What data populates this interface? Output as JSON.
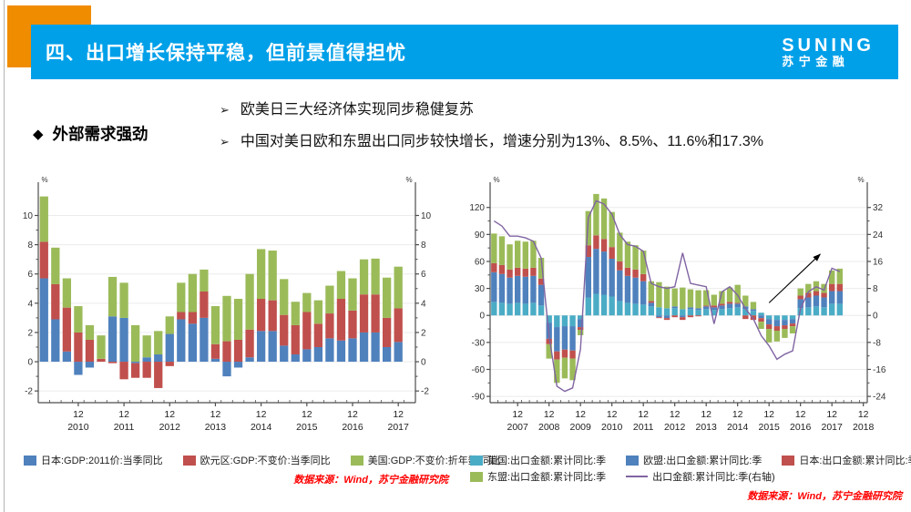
{
  "header": {
    "title": "四、出口增长保持平稳，但前景值得担忧",
    "logo_line1": "SUNING",
    "logo_line2": "苏宁金融"
  },
  "bullets": {
    "diamond_icon": "◆",
    "arrow_icon": "➢",
    "heading": "外部需求强劲",
    "items": [
      "欧美日三大经济体实现同步稳健复苏",
      "中国对美日欧和东盟出口同步较快增长，增速分别为13%、8.5%、11.6%和17.3%"
    ]
  },
  "colors": {
    "header_bg": "#00A0E9",
    "accent_orange": "#F08C00",
    "source_red": "#FF0000",
    "axis": "#4d4d4d",
    "grid": "#ebebeb"
  },
  "sources": {
    "left": "数据来源：Wind，苏宁金融研究院",
    "right": "数据来源：Wind，苏宁金融研究院"
  },
  "chart_data": [
    {
      "name": "gdp-growth-quarterly",
      "type": "bar",
      "stacked": true,
      "unit": "%",
      "x_tick_label": "12",
      "years": [
        "2010",
        "2011",
        "2012",
        "2013",
        "2014",
        "2015",
        "2016",
        "2017"
      ],
      "ylim": [
        -2.8,
        11.9
      ],
      "yticks": [
        -2,
        0,
        2,
        4,
        6,
        8,
        10
      ],
      "right_axis": "mirror",
      "x_slots": 33,
      "grid": true,
      "legend_position": "bottom",
      "series": [
        {
          "name": "日本:GDP:2011价:当季同比",
          "color": "#4F81BD",
          "values": [
            5.7,
            2.9,
            0.7,
            -0.9,
            -0.4,
            0.0,
            3.1,
            3.0,
            -0.1,
            0.3,
            0.5,
            1.9,
            2.9,
            2.6,
            3.0,
            0.2,
            -1.0,
            -0.4,
            0.3,
            2.1,
            2.1,
            1.1,
            0.5,
            0.85,
            1.0,
            1.6,
            1.45,
            1.6,
            2.0,
            2.0,
            1.0,
            1.35
          ]
        },
        {
          "name": "欧元区:GDP:不变价:当季同比",
          "color": "#C0504D",
          "values": [
            2.5,
            2.4,
            3.0,
            2.0,
            1.5,
            0.2,
            -0.1,
            -1.2,
            -1.0,
            -1.1,
            -1.8,
            -0.3,
            0.5,
            0.8,
            1.8,
            1.0,
            1.4,
            1.5,
            1.9,
            2.2,
            2.1,
            2.1,
            2.0,
            2.55,
            1.6,
            1.7,
            2.85,
            1.9,
            2.6,
            2.6,
            2.0,
            2.3
          ]
        },
        {
          "name": "美国:GDP:不变价:折年数:同比",
          "color": "#9BBB59",
          "values": [
            3.1,
            2.5,
            2.0,
            1.8,
            1.0,
            1.6,
            2.7,
            2.4,
            2.5,
            1.5,
            1.6,
            1.2,
            2.0,
            2.6,
            1.5,
            2.6,
            3.1,
            2.8,
            3.8,
            3.4,
            3.4,
            2.45,
            1.6,
            1.3,
            1.6,
            1.9,
            1.9,
            2.2,
            2.4,
            2.45,
            2.75,
            2.85
          ]
        }
      ]
    },
    {
      "name": "export-value-cumulative-yoy",
      "type": "bar+line",
      "stacked": true,
      "unit": "%",
      "x_tick_label": "12",
      "years": [
        "2007",
        "2008",
        "2009",
        "2010",
        "2011",
        "2012",
        "2013",
        "2014",
        "2015",
        "2016",
        "2017",
        "2018"
      ],
      "ylim": [
        -97,
        142
      ],
      "yticks": [
        -90,
        -60,
        -30,
        0,
        30,
        60,
        90,
        120
      ],
      "right_axis": {
        "ticks": [
          -24,
          -16,
          -8,
          0,
          8,
          16,
          24,
          32
        ],
        "ratio": 3.75
      },
      "x_slots": 48,
      "grid": true,
      "legend_position": "bottom",
      "series": [
        {
          "name": "美国:出口金额:累计同比:季",
          "color": "#4BACC6",
          "values": [
            15,
            14,
            13,
            14,
            13,
            14,
            11,
            -8,
            -13,
            -12,
            -12,
            -4,
            20,
            24,
            23,
            21,
            16,
            14,
            13,
            12,
            10,
            9,
            8,
            8,
            7,
            7,
            6,
            7,
            6,
            7,
            8,
            9,
            7,
            5,
            3,
            -4,
            -5,
            -5,
            -4,
            8,
            9,
            10,
            9,
            13,
            13
          ]
        },
        {
          "name": "欧盟:出口金额:累计同比:季",
          "color": "#4F81BD",
          "values": [
            33,
            32,
            29,
            30,
            30,
            30,
            23,
            -18,
            -27,
            -26,
            -27,
            -9,
            45,
            50,
            48,
            42,
            34,
            30,
            29,
            26,
            4,
            -2,
            -3,
            2,
            -2,
            2,
            2,
            3,
            3,
            4,
            5,
            4,
            3,
            2,
            -3,
            -6,
            -7,
            -6,
            -5,
            10,
            11,
            12,
            11,
            14,
            14
          ]
        },
        {
          "name": "日本:出口金额:累计同比:季",
          "color": "#C0504D",
          "values": [
            10,
            10,
            9,
            9,
            9,
            9,
            7,
            -6,
            -9,
            -9,
            -9,
            -3,
            13,
            15,
            14,
            13,
            10,
            9,
            9,
            8,
            2,
            -1,
            -2,
            -2,
            -3,
            -2,
            -1,
            1,
            2,
            2,
            2,
            1,
            -4,
            -5,
            -4,
            -5,
            -5,
            -4,
            -3,
            4,
            5,
            5,
            5,
            8,
            8
          ]
        },
        {
          "name": "东盟:出口金额:累计同比:季",
          "color": "#9BBB59",
          "values": [
            33,
            32,
            28,
            30,
            30,
            30,
            23,
            -16,
            -26,
            -23,
            -24,
            -6,
            38,
            46,
            45,
            39,
            32,
            29,
            27,
            26,
            22,
            28,
            24,
            20,
            24,
            20,
            20,
            17,
            12,
            14,
            16,
            20,
            12,
            8,
            -8,
            -15,
            -12,
            -10,
            -8,
            8,
            10,
            11,
            10,
            15,
            17
          ]
        }
      ],
      "line": {
        "name": "出口金额:累计同比:季(右轴)",
        "color": "#8064A2",
        "axis": "right",
        "values": [
          28,
          26.5,
          23.5,
          23.5,
          23,
          22,
          17,
          -6,
          -21,
          -22.5,
          -21.5,
          -10,
          29,
          34,
          33,
          30,
          24,
          21,
          20.5,
          19,
          9.5,
          8.5,
          8,
          8.5,
          18.5,
          9.5,
          9,
          8.5,
          -2.5,
          7,
          8.5,
          6,
          2,
          -1,
          -6,
          -9,
          -13,
          -11.5,
          -10.5,
          2,
          7,
          8.5,
          7.5,
          14,
          13
        ]
      },
      "annotation": {
        "type": "arrow",
        "from_index": 35,
        "from_value": 14,
        "to_index": 41.5,
        "to_value": 68
      }
    }
  ]
}
